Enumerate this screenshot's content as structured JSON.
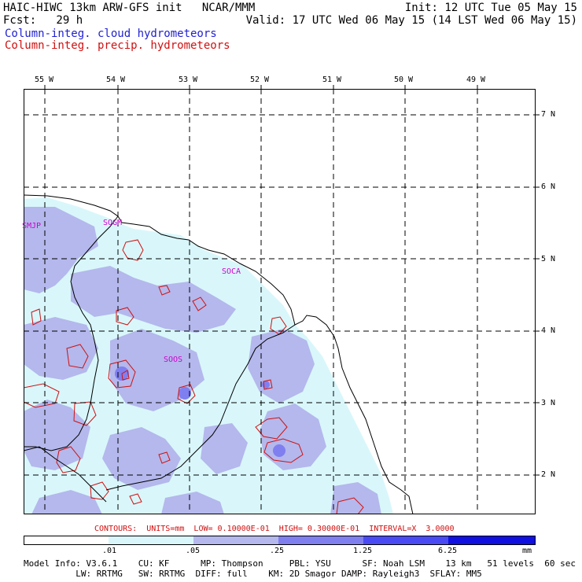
{
  "header": {
    "line1_left": "HAIC-HIWC 13km ARW-GFS init   NCAR/MMM",
    "line1_right": "Init: 12 UTC Tue 05 May 15",
    "line2_left": "Fcst:   29 h",
    "line2_right": "Valid: 17 UTC Wed 06 May 15 (14 LST Wed 06 May 15)",
    "field_cloud": "Column-integ. cloud hydrometeors",
    "field_precip": "Column-integ. precip. hydrometeors"
  },
  "longitude_labels": [
    "55 W",
    "54 W",
    "53 W",
    "52 W",
    "51 W",
    "50 W",
    "49 W"
  ],
  "latitude_labels": [
    "7 N",
    "6 N",
    "5 N",
    "4 N",
    "3 N",
    "2 N"
  ],
  "stations": [
    "SMJP",
    "SOGM",
    "SOCA",
    "SOOS"
  ],
  "contours_info": "CONTOURS:  UNITS=mm  LOW= 0.10000E-01  HIGH= 0.30000E-01  INTERVAL=X  3.0000",
  "scale": {
    "unit": "mm",
    "thresholds": [
      ".01",
      ".05",
      ".25",
      "1.25",
      "6.25"
    ],
    "colors": [
      "#ffffff",
      "#d9f7fb",
      "#b4b8ec",
      "#7f7ff0",
      "#4a4af5",
      "#1010e0"
    ]
  },
  "model_info": {
    "line1": "Model Info: V3.6.1    CU: KF      MP: Thompson     PBL: YSU      SF: Noah LSM    13 km   51 levels  60 sec",
    "line2": "          LW: RRTMG   SW: RRTMG  DIFF: full    KM: 2D Smagor DAMP: Rayleigh3  SFLAY: MM5"
  }
}
